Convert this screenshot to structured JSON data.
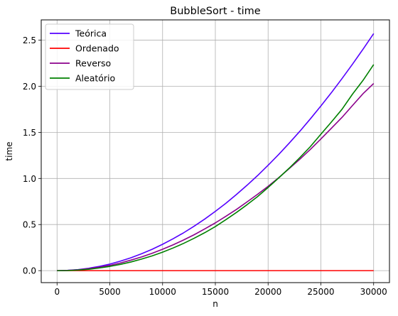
{
  "chart_data": {
    "type": "line",
    "title": "BubbleSort - time",
    "xlabel": "n",
    "ylabel": "time",
    "xlim": [
      -1500,
      31500
    ],
    "ylim": [
      -0.13,
      2.72
    ],
    "xticks": [
      0,
      5000,
      10000,
      15000,
      20000,
      25000,
      30000
    ],
    "yticks": [
      0.0,
      0.5,
      1.0,
      1.5,
      2.0,
      2.5
    ],
    "xtick_labels": [
      "0",
      "5000",
      "10000",
      "15000",
      "20000",
      "25000",
      "30000"
    ],
    "ytick_labels": [
      "0.0",
      "0.5",
      "1.0",
      "1.5",
      "2.0",
      "2.5"
    ],
    "grid": true,
    "legend_position": "top-left",
    "x": [
      0,
      1000,
      2000,
      3000,
      4000,
      5000,
      6000,
      7000,
      8000,
      9000,
      10000,
      11000,
      12000,
      13000,
      14000,
      15000,
      16000,
      17000,
      18000,
      19000,
      20000,
      21000,
      22000,
      23000,
      24000,
      25000,
      26000,
      27000,
      28000,
      29000,
      30000
    ],
    "series": [
      {
        "name": "Teórica",
        "color": "#5500ff",
        "values": [
          0.0,
          0.003,
          0.011,
          0.026,
          0.046,
          0.071,
          0.103,
          0.14,
          0.183,
          0.231,
          0.286,
          0.346,
          0.411,
          0.483,
          0.56,
          0.643,
          0.731,
          0.826,
          0.926,
          1.031,
          1.143,
          1.26,
          1.383,
          1.511,
          1.646,
          1.786,
          1.931,
          2.083,
          2.24,
          2.403,
          2.571
        ]
      },
      {
        "name": "Ordenado",
        "color": "#ff0000",
        "values": [
          0.0,
          0.0,
          0.0,
          0.0,
          0.0,
          0.0,
          0.0,
          0.0,
          0.0,
          0.0,
          0.0,
          0.0,
          0.0,
          0.0,
          0.0,
          0.0,
          0.0,
          0.0,
          0.0,
          0.0,
          0.0,
          0.0,
          0.0,
          0.0,
          0.0,
          0.0,
          0.0,
          0.0,
          0.0,
          0.0,
          0.0
        ]
      },
      {
        "name": "Reverso",
        "color": "#8b008b",
        "values": [
          0.0,
          0.002,
          0.009,
          0.021,
          0.037,
          0.057,
          0.083,
          0.114,
          0.148,
          0.188,
          0.232,
          0.28,
          0.333,
          0.39,
          0.453,
          0.518,
          0.59,
          0.664,
          0.745,
          0.828,
          0.915,
          1.008,
          1.107,
          1.208,
          1.315,
          1.428,
          1.545,
          1.662,
          1.792,
          1.92,
          2.03
        ]
      },
      {
        "name": "Aleatório",
        "color": "#008000",
        "values": [
          0.0,
          0.001,
          0.006,
          0.015,
          0.029,
          0.046,
          0.068,
          0.094,
          0.125,
          0.16,
          0.2,
          0.246,
          0.296,
          0.352,
          0.412,
          0.478,
          0.553,
          0.631,
          0.715,
          0.803,
          0.902,
          1.005,
          1.112,
          1.225,
          1.345,
          1.48,
          1.613,
          1.75,
          1.915,
          2.065,
          2.235
        ]
      }
    ]
  }
}
